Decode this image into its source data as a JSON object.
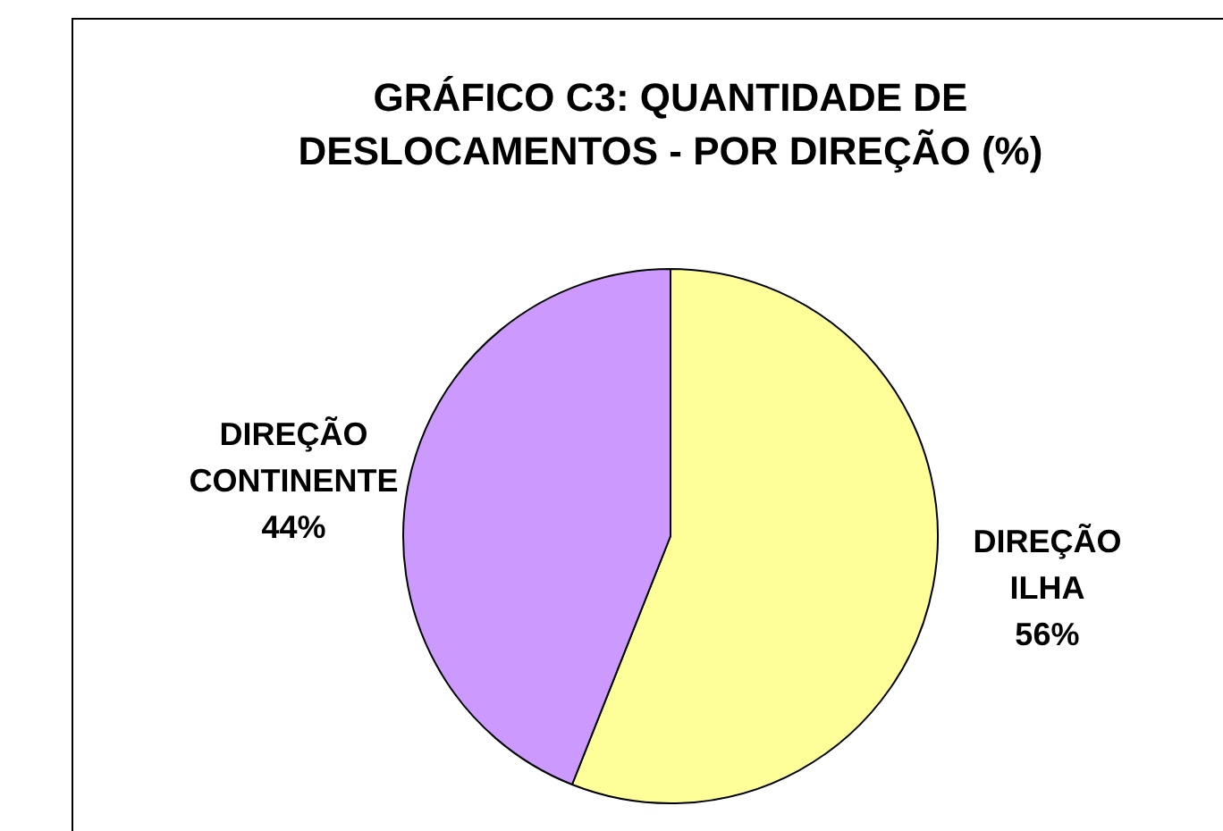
{
  "chart_data": {
    "type": "pie",
    "title": "GRÁFICO C3: QUANTIDADE DE DESLOCAMENTOS - POR DIREÇÃO (%)",
    "categories": [
      "DIREÇÃO ILHA",
      "DIREÇÃO CONTINENTE"
    ],
    "values": [
      56,
      44
    ],
    "colors": [
      "#ffff99",
      "#cc99ff"
    ],
    "value_labels": [
      "56%",
      "44%"
    ],
    "legend": false
  }
}
